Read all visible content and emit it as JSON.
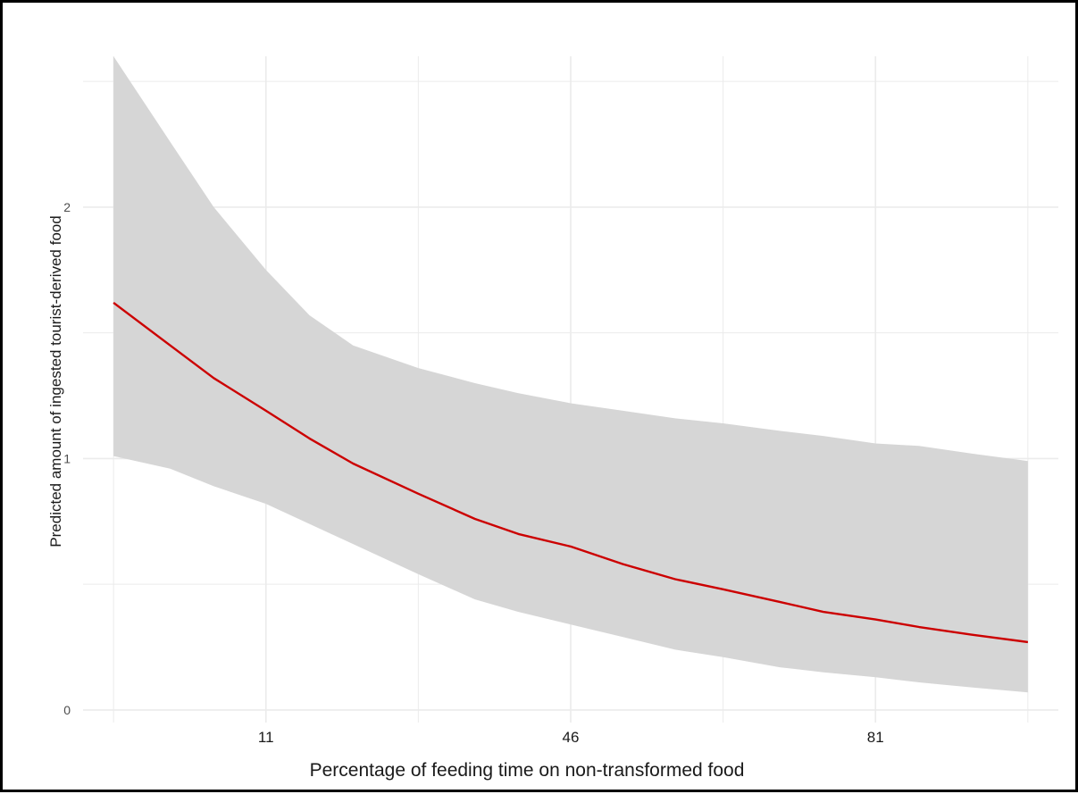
{
  "chart_data": {
    "type": "line",
    "title": "",
    "xlabel": "Percentage of feeding time on non-transformed food",
    "ylabel": "Predicted amount of ingested tourist-derived food",
    "xlim": [
      -10,
      102
    ],
    "ylim": [
      -0.05,
      2.6
    ],
    "x_ticks": [
      11,
      46,
      81
    ],
    "x_minor_gridlines": [
      -6.5,
      28.5,
      63.5,
      98.5
    ],
    "y_ticks": [
      0,
      1,
      2
    ],
    "y_minor_gridlines": [
      0.5,
      1.5,
      2.5
    ],
    "grid": true,
    "colors": {
      "line": "#cc0000",
      "ribbon": "#d6d6d6",
      "grid": "#ebebeb"
    },
    "series": [
      {
        "x": [
          -6.5,
          0,
          5,
          11,
          16,
          21,
          28.5,
          35,
          40,
          46,
          52,
          58,
          63.5,
          70,
          75,
          81,
          86,
          92,
          98.5
        ],
        "y": [
          1.62,
          1.45,
          1.32,
          1.19,
          1.08,
          0.98,
          0.86,
          0.76,
          0.7,
          0.65,
          0.58,
          0.52,
          0.48,
          0.43,
          0.39,
          0.36,
          0.33,
          0.3,
          0.27
        ],
        "lower": [
          1.01,
          0.96,
          0.89,
          0.82,
          0.74,
          0.66,
          0.54,
          0.44,
          0.39,
          0.34,
          0.29,
          0.24,
          0.21,
          0.17,
          0.15,
          0.13,
          0.11,
          0.09,
          0.07
        ],
        "upper": [
          2.6,
          2.26,
          2.0,
          1.75,
          1.57,
          1.45,
          1.36,
          1.3,
          1.26,
          1.22,
          1.19,
          1.16,
          1.14,
          1.11,
          1.09,
          1.06,
          1.05,
          1.02,
          0.99
        ]
      }
    ]
  }
}
